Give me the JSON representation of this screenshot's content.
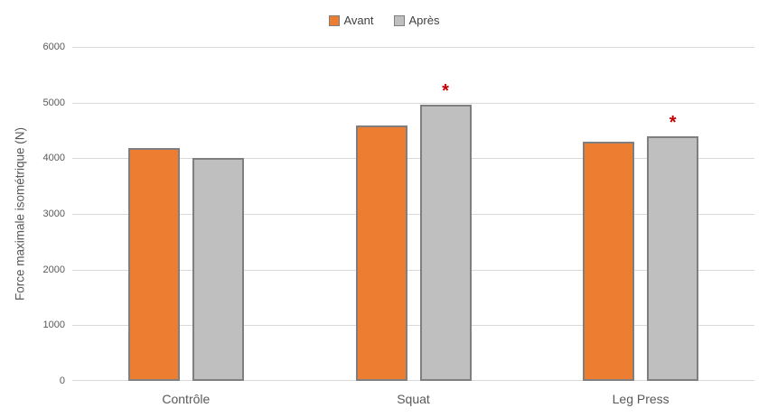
{
  "legend": {
    "items": [
      {
        "label": "Avant",
        "color": "#ED7D31"
      },
      {
        "label": "Après",
        "color": "#BFBFBF"
      }
    ]
  },
  "chart_data": {
    "type": "bar",
    "title": "",
    "categories": [
      "Contrôle",
      "Squat",
      "Leg Press"
    ],
    "series": [
      {
        "name": "Avant",
        "color": "#ED7D31",
        "values": [
          4180,
          4590,
          4300
        ]
      },
      {
        "name": "Après",
        "color": "#BFBFBF",
        "values": [
          4010,
          4960,
          4400
        ]
      }
    ],
    "annotations": [
      {
        "category": "Squat",
        "series": "Après",
        "text": "*",
        "color": "#C00000"
      },
      {
        "category": "Leg Press",
        "series": "Après",
        "text": "*",
        "color": "#C00000"
      }
    ],
    "ylabel": "Force maximale isométrique (N)",
    "xlabel": "",
    "ylim": [
      0,
      6000
    ],
    "yticks": [
      0,
      1000,
      2000,
      3000,
      4000,
      5000,
      6000
    ],
    "grid": true,
    "legend_position": "top",
    "bar_border_color": "#7F7F7F",
    "gridline_color": "#D9D9D9",
    "text_color": "#595959"
  }
}
